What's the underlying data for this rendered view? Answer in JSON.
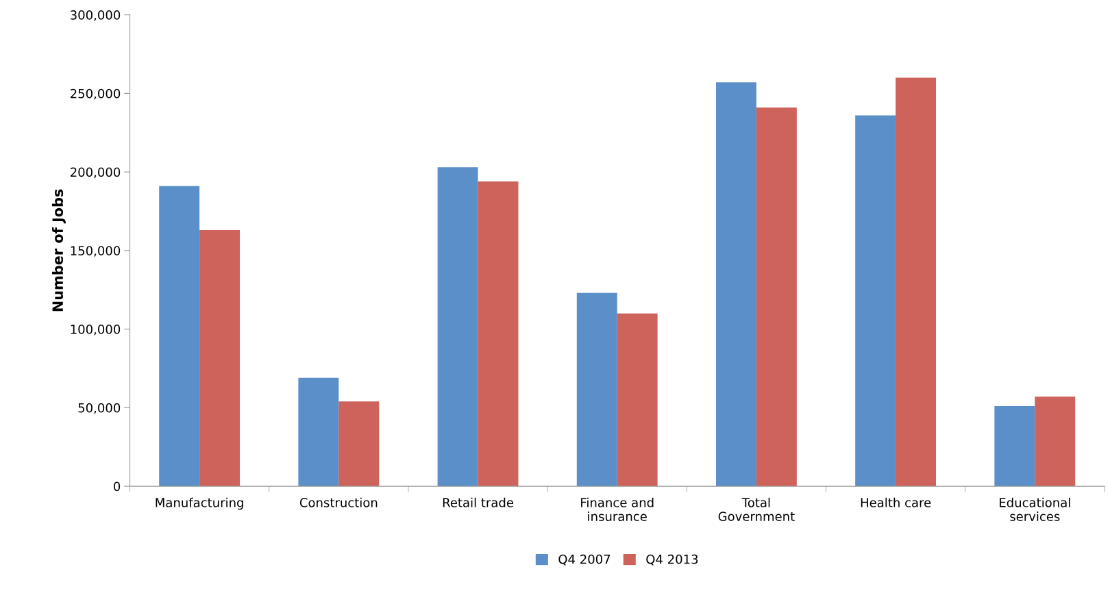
{
  "chart_data": {
    "type": "bar",
    "ylabel": "Number of Jobs",
    "categories": [
      "Manufacturing",
      "Construction",
      "Retail trade",
      "Finance and\ninsurance",
      "Total\nGovernment",
      "Health care",
      "Educational\nservices"
    ],
    "series": [
      {
        "name": "Q4 2007",
        "color": "#5b8fc9",
        "values": [
          191000,
          69000,
          203000,
          123000,
          257000,
          236000,
          51000
        ]
      },
      {
        "name": "Q4 2013",
        "color": "#cd635a",
        "values": [
          163000,
          54000,
          194000,
          110000,
          241000,
          260000,
          57000
        ]
      }
    ],
    "ylim": [
      0,
      300000
    ],
    "yticks": [
      {
        "value": 0,
        "label": "0"
      },
      {
        "value": 50000,
        "label": "50,000"
      },
      {
        "value": 100000,
        "label": "100,000"
      },
      {
        "value": 150000,
        "label": "150,000"
      },
      {
        "value": 200000,
        "label": "200,000"
      },
      {
        "value": 250000,
        "label": "250,000"
      },
      {
        "value": 300000,
        "label": "300,000"
      }
    ],
    "grid": false,
    "legend": "bottom"
  }
}
